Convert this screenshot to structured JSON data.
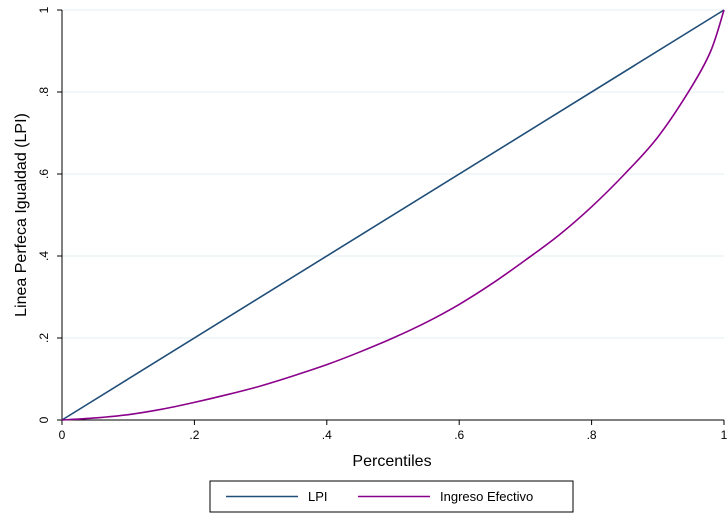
{
  "chart_data": {
    "type": "line",
    "xlabel": "Percentiles",
    "ylabel": "Linea Perfeca Igualdad (LPI)",
    "xlim": [
      0,
      1
    ],
    "ylim": [
      0,
      1
    ],
    "x_ticks": [
      0,
      0.2,
      0.4,
      0.6,
      0.8,
      1
    ],
    "x_tick_labels": [
      "0",
      ".2",
      ".4",
      ".6",
      ".8",
      "1"
    ],
    "y_ticks": [
      0,
      0.2,
      0.4,
      0.6,
      0.8,
      1
    ],
    "y_tick_labels": [
      "0",
      ".2",
      ".4",
      ".6",
      ".8",
      "1"
    ],
    "grid": true,
    "legend_position": "bottom",
    "series": [
      {
        "name": "LPI",
        "color": "#1f4e79",
        "x": [
          0,
          1
        ],
        "y": [
          0,
          1
        ]
      },
      {
        "name": "Ingreso Efectivo",
        "color": "#8b008b",
        "x": [
          0,
          0.05,
          0.1,
          0.15,
          0.2,
          0.25,
          0.3,
          0.35,
          0.4,
          0.45,
          0.5,
          0.55,
          0.6,
          0.65,
          0.7,
          0.75,
          0.8,
          0.85,
          0.9,
          0.95,
          0.98,
          1
        ],
        "y": [
          0,
          0.005,
          0.013,
          0.026,
          0.043,
          0.062,
          0.083,
          0.108,
          0.135,
          0.166,
          0.2,
          0.238,
          0.282,
          0.333,
          0.39,
          0.45,
          0.52,
          0.6,
          0.69,
          0.81,
          0.9,
          1
        ]
      }
    ]
  }
}
